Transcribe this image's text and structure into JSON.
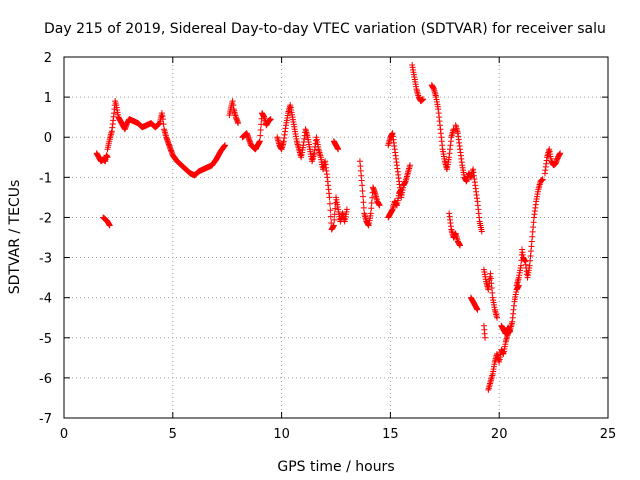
{
  "chart_data": {
    "type": "scatter",
    "title": "Day 215 of 2019, Sidereal Day-to-day VTEC variation (SDTVAR) for receiver salu",
    "xlabel": "GPS time / hours",
    "ylabel": "SDTVAR / TECUs",
    "xlim": [
      0,
      25
    ],
    "ylim": [
      -7,
      2
    ],
    "xticks": [
      0,
      5,
      10,
      15,
      20,
      25
    ],
    "yticks": [
      -7,
      -6,
      -5,
      -4,
      -3,
      -2,
      -1,
      0,
      1,
      2
    ],
    "xtick_labels": [
      "0",
      "5",
      "10",
      "15",
      "20",
      "25"
    ],
    "ytick_labels": [
      "-7",
      "-6",
      "-5",
      "-4",
      "-3",
      "-2",
      "-1",
      "0",
      "1",
      "2"
    ],
    "grid": true,
    "marker": "plus",
    "color": "#ff0000",
    "series": [
      {
        "name": "SDTVAR",
        "segments": [
          [
            [
              1.5,
              -0.4
            ],
            [
              1.6,
              -0.5
            ],
            [
              1.7,
              -0.6
            ],
            [
              1.8,
              -0.55
            ],
            [
              1.9,
              -0.6
            ],
            [
              1.95,
              -0.45
            ],
            [
              2.0,
              -0.5
            ]
          ],
          [
            [
              1.8,
              -2.0
            ],
            [
              1.9,
              -2.05
            ],
            [
              2.0,
              -2.1
            ],
            [
              2.05,
              -2.15
            ],
            [
              2.1,
              -2.2
            ]
          ],
          [
            [
              2.0,
              -0.3
            ],
            [
              2.1,
              -0.05
            ],
            [
              2.2,
              0.15
            ],
            [
              2.3,
              0.6
            ],
            [
              2.35,
              0.9
            ],
            [
              2.4,
              0.8
            ],
            [
              2.5,
              0.5
            ],
            [
              2.6,
              0.4
            ],
            [
              2.7,
              0.3
            ],
            [
              2.8,
              0.2
            ],
            [
              2.9,
              0.35
            ],
            [
              3.0,
              0.45
            ],
            [
              3.2,
              0.4
            ],
            [
              3.4,
              0.35
            ],
            [
              3.6,
              0.25
            ],
            [
              3.8,
              0.3
            ],
            [
              4.0,
              0.35
            ],
            [
              4.2,
              0.25
            ],
            [
              4.4,
              0.35
            ],
            [
              4.5,
              0.6
            ],
            [
              4.55,
              0.45
            ],
            [
              4.6,
              0.2
            ],
            [
              4.7,
              0.0
            ],
            [
              4.8,
              -0.15
            ],
            [
              4.9,
              -0.3
            ],
            [
              5.0,
              -0.45
            ],
            [
              5.2,
              -0.6
            ],
            [
              5.4,
              -0.7
            ],
            [
              5.6,
              -0.8
            ],
            [
              5.8,
              -0.9
            ],
            [
              6.0,
              -0.95
            ],
            [
              6.2,
              -0.85
            ],
            [
              6.4,
              -0.8
            ],
            [
              6.6,
              -0.75
            ],
            [
              6.8,
              -0.7
            ],
            [
              7.0,
              -0.55
            ],
            [
              7.2,
              -0.35
            ],
            [
              7.4,
              -0.2
            ]
          ],
          [
            [
              7.6,
              0.55
            ],
            [
              7.7,
              0.8
            ],
            [
              7.75,
              0.9
            ],
            [
              7.8,
              0.7
            ],
            [
              7.9,
              0.5
            ],
            [
              8.0,
              0.35
            ]
          ],
          [
            [
              8.2,
              0.0
            ],
            [
              8.4,
              0.1
            ],
            [
              8.6,
              -0.2
            ],
            [
              8.8,
              -0.3
            ],
            [
              9.0,
              -0.1
            ],
            [
              9.1,
              0.6
            ],
            [
              9.2,
              0.5
            ],
            [
              9.3,
              0.3
            ],
            [
              9.4,
              0.4
            ],
            [
              9.5,
              0.45
            ]
          ],
          [
            [
              9.8,
              0.0
            ],
            [
              9.9,
              -0.2
            ],
            [
              10.0,
              -0.3
            ],
            [
              10.1,
              -0.1
            ],
            [
              10.2,
              0.3
            ],
            [
              10.3,
              0.6
            ],
            [
              10.4,
              0.8
            ],
            [
              10.5,
              0.5
            ],
            [
              10.6,
              0.2
            ],
            [
              10.7,
              -0.1
            ],
            [
              10.8,
              -0.3
            ],
            [
              10.9,
              -0.5
            ],
            [
              11.0,
              -0.2
            ],
            [
              11.1,
              0.2
            ],
            [
              11.2,
              0.0
            ],
            [
              11.3,
              -0.3
            ],
            [
              11.4,
              -0.6
            ],
            [
              11.5,
              -0.4
            ],
            [
              11.6,
              0.0
            ],
            [
              11.7,
              -0.3
            ],
            [
              11.8,
              -0.5
            ],
            [
              11.9,
              -0.8
            ],
            [
              12.0,
              -0.6
            ],
            [
              12.1,
              -1.0
            ],
            [
              12.2,
              -1.5
            ],
            [
              12.3,
              -2.3
            ],
            [
              12.4,
              -2.2
            ],
            [
              12.5,
              -1.5
            ],
            [
              12.6,
              -1.8
            ],
            [
              12.7,
              -2.1
            ],
            [
              12.8,
              -1.9
            ],
            [
              12.9,
              -2.1
            ],
            [
              13.0,
              -1.8
            ]
          ],
          [
            [
              12.4,
              -0.1
            ],
            [
              12.5,
              -0.2
            ],
            [
              12.6,
              -0.3
            ]
          ],
          [
            [
              13.6,
              -0.6
            ],
            [
              13.7,
              -1.2
            ],
            [
              13.8,
              -1.9
            ],
            [
              13.9,
              -2.1
            ],
            [
              14.0,
              -2.2
            ],
            [
              14.1,
              -1.9
            ],
            [
              14.2,
              -1.25
            ],
            [
              14.3,
              -1.4
            ],
            [
              14.4,
              -1.6
            ],
            [
              14.5,
              -1.7
            ]
          ],
          [
            [
              14.9,
              -0.2
            ],
            [
              15.0,
              0.0
            ],
            [
              15.1,
              0.1
            ],
            [
              15.2,
              -0.3
            ],
            [
              15.3,
              -0.7
            ],
            [
              15.4,
              -1.1
            ],
            [
              15.5,
              -1.5
            ],
            [
              15.6,
              -1.2
            ],
            [
              15.7,
              -1.1
            ],
            [
              15.8,
              -0.9
            ],
            [
              15.9,
              -0.7
            ]
          ],
          [
            [
              14.9,
              -2.0
            ],
            [
              15.0,
              -1.9
            ],
            [
              15.1,
              -1.8
            ],
            [
              15.2,
              -1.6
            ],
            [
              15.3,
              -1.7
            ],
            [
              15.4,
              -1.4
            ],
            [
              15.5,
              -1.3
            ]
          ],
          [
            [
              16.0,
              1.8
            ],
            [
              16.1,
              1.5
            ],
            [
              16.2,
              1.2
            ],
            [
              16.3,
              1.0
            ],
            [
              16.4,
              0.9
            ],
            [
              16.5,
              0.95
            ]
          ],
          [
            [
              16.9,
              1.3
            ],
            [
              17.0,
              1.2
            ],
            [
              17.1,
              1.0
            ],
            [
              17.2,
              0.7
            ],
            [
              17.3,
              0.2
            ],
            [
              17.4,
              -0.3
            ],
            [
              17.5,
              -0.6
            ],
            [
              17.6,
              -0.8
            ],
            [
              17.7,
              -0.5
            ],
            [
              17.8,
              0.0
            ],
            [
              17.9,
              0.2
            ]
          ],
          [
            [
              17.7,
              -1.9
            ],
            [
              17.8,
              -2.3
            ],
            [
              17.9,
              -2.5
            ],
            [
              18.0,
              -2.4
            ],
            [
              18.1,
              -2.6
            ],
            [
              18.2,
              -2.7
            ]
          ],
          [
            [
              18.0,
              0.3
            ],
            [
              18.1,
              0.1
            ],
            [
              18.2,
              -0.3
            ],
            [
              18.3,
              -0.7
            ],
            [
              18.4,
              -1.0
            ],
            [
              18.5,
              -1.1
            ],
            [
              18.6,
              -0.9
            ],
            [
              18.7,
              -1.0
            ],
            [
              18.8,
              -0.8
            ],
            [
              18.9,
              -1.2
            ],
            [
              19.0,
              -1.6
            ],
            [
              19.1,
              -2.1
            ],
            [
              19.2,
              -2.35
            ]
          ],
          [
            [
              18.7,
              -4.0
            ],
            [
              18.8,
              -4.1
            ],
            [
              18.9,
              -4.2
            ],
            [
              19.0,
              -4.3
            ]
          ],
          [
            [
              19.3,
              -3.3
            ],
            [
              19.4,
              -3.6
            ],
            [
              19.5,
              -3.8
            ],
            [
              19.6,
              -3.4
            ],
            [
              19.7,
              -4.0
            ],
            [
              19.8,
              -4.3
            ],
            [
              19.9,
              -4.5
            ]
          ],
          [
            [
              19.3,
              -4.7
            ],
            [
              19.35,
              -5.0
            ]
          ],
          [
            [
              19.5,
              -6.3
            ],
            [
              19.6,
              -6.1
            ],
            [
              19.7,
              -5.9
            ],
            [
              19.8,
              -5.6
            ],
            [
              19.9,
              -5.4
            ],
            [
              20.0,
              -5.6
            ],
            [
              20.1,
              -5.3
            ],
            [
              20.2,
              -5.4
            ],
            [
              20.3,
              -5.1
            ],
            [
              20.4,
              -4.9
            ],
            [
              20.5,
              -4.8
            ],
            [
              20.6,
              -4.6
            ],
            [
              20.7,
              -4.1
            ],
            [
              20.8,
              -3.8
            ],
            [
              20.9,
              -3.7
            ]
          ],
          [
            [
              20.1,
              -4.7
            ],
            [
              20.2,
              -4.8
            ],
            [
              20.3,
              -4.9
            ],
            [
              20.4,
              -4.75
            ],
            [
              20.5,
              -4.85
            ]
          ],
          [
            [
              20.8,
              -3.7
            ],
            [
              20.9,
              -3.5
            ],
            [
              21.0,
              -3.2
            ],
            [
              21.05,
              -2.8
            ],
            [
              21.1,
              -3.0
            ],
            [
              21.2,
              -3.1
            ],
            [
              21.3,
              -3.5
            ],
            [
              21.4,
              -3.2
            ],
            [
              21.5,
              -2.6
            ],
            [
              21.6,
              -2.0
            ],
            [
              21.7,
              -1.6
            ],
            [
              21.8,
              -1.3
            ],
            [
              21.9,
              -1.1
            ],
            [
              22.0,
              -1.05
            ]
          ],
          [
            [
              22.1,
              -0.9
            ],
            [
              22.2,
              -0.5
            ],
            [
              22.3,
              -0.3
            ],
            [
              22.4,
              -0.6
            ],
            [
              22.5,
              -0.7
            ],
            [
              22.6,
              -0.65
            ],
            [
              22.7,
              -0.5
            ],
            [
              22.8,
              -0.4
            ]
          ]
        ]
      }
    ]
  }
}
